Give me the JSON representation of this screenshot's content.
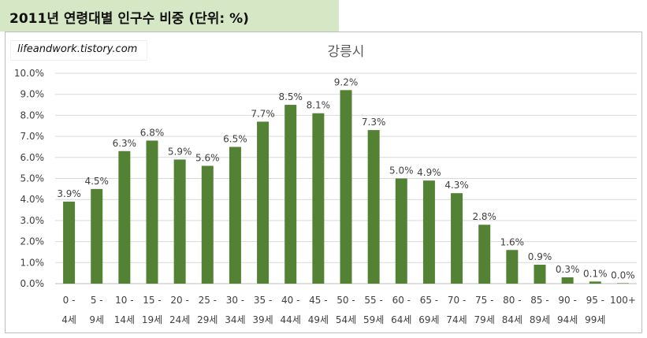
{
  "header": {
    "title": "2011년 연령대별 인구수 비중 (단위: %)",
    "banner_color": "#d5e7c4"
  },
  "watermark": {
    "text": "lifeandwork.tistory.com"
  },
  "chart_data": {
    "type": "bar",
    "title": "강릉시",
    "bar_color": "#548235",
    "grid": true,
    "ylim": [
      0,
      10
    ],
    "y_ticks": [
      "0.0%",
      "1.0%",
      "2.0%",
      "3.0%",
      "4.0%",
      "5.0%",
      "6.0%",
      "7.0%",
      "8.0%",
      "9.0%",
      "10.0%"
    ],
    "categories": [
      [
        "0 -",
        "4세"
      ],
      [
        "5 -",
        "9세"
      ],
      [
        "10 -",
        "14세"
      ],
      [
        "15 -",
        "19세"
      ],
      [
        "20 -",
        "24세"
      ],
      [
        "25 -",
        "29세"
      ],
      [
        "30 -",
        "34세"
      ],
      [
        "35 -",
        "39세"
      ],
      [
        "40 -",
        "44세"
      ],
      [
        "45 -",
        "49세"
      ],
      [
        "50 -",
        "54세"
      ],
      [
        "55 -",
        "59세"
      ],
      [
        "60 -",
        "64세"
      ],
      [
        "65 -",
        "69세"
      ],
      [
        "70 -",
        "74세"
      ],
      [
        "75 -",
        "79세"
      ],
      [
        "80 -",
        "84세"
      ],
      [
        "85 -",
        "89세"
      ],
      [
        "90 -",
        "94세"
      ],
      [
        "95 -",
        "99세"
      ],
      [
        "100+",
        ""
      ]
    ],
    "values": [
      3.9,
      4.5,
      6.3,
      6.8,
      5.9,
      5.6,
      6.5,
      7.7,
      8.5,
      8.1,
      9.2,
      7.3,
      5.0,
      4.9,
      4.3,
      2.8,
      1.6,
      0.9,
      0.3,
      0.1,
      0.0
    ],
    "labels": [
      "3.9%",
      "4.5%",
      "6.3%",
      "6.8%",
      "5.9%",
      "5.6%",
      "6.5%",
      "7.7%",
      "8.5%",
      "8.1%",
      "9.2%",
      "7.3%",
      "5.0%",
      "4.9%",
      "4.3%",
      "2.8%",
      "1.6%",
      "0.9%",
      "0.3%",
      "0.1%",
      "0.0%"
    ]
  }
}
